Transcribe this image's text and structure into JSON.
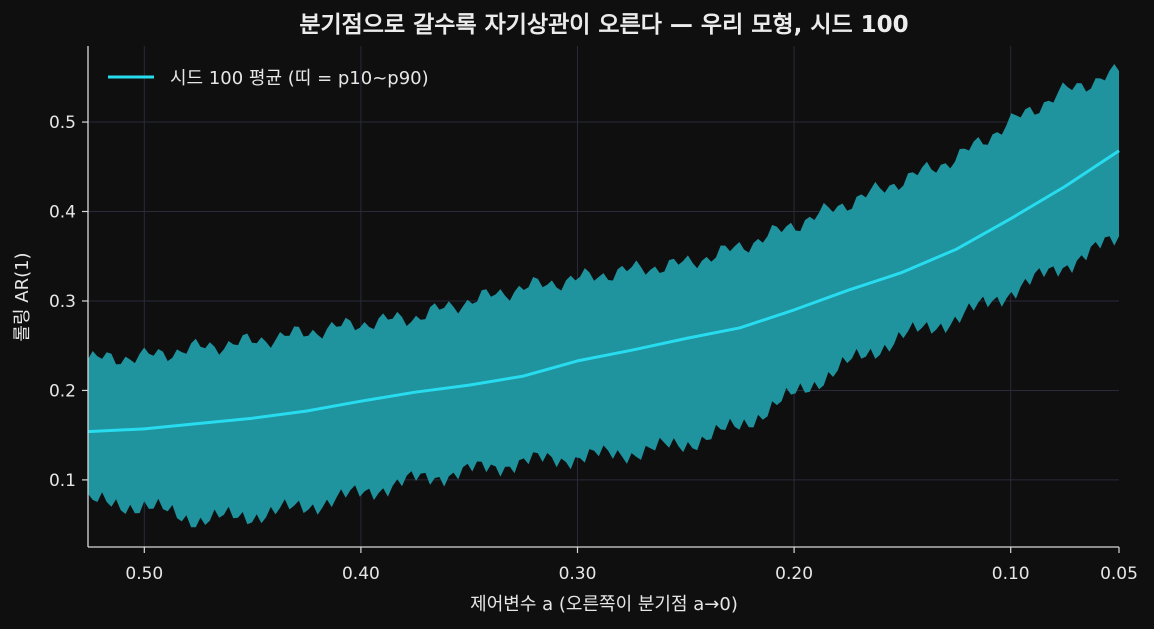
{
  "chart_data": {
    "type": "line",
    "title": "분기점으로 갈수록 자기상관이 오른다 — 우리 모형, 시드 100",
    "xlabel": "제어변수 a (오른쪽이 분기점 a→0)",
    "ylabel": "롤링 AR(1)",
    "x_axis_reversed": true,
    "xlim": [
      0.526,
      0.05
    ],
    "ylim": [
      0.025,
      0.585
    ],
    "xticks": [
      0.5,
      0.4,
      0.3,
      0.2,
      0.1,
      0.05
    ],
    "xtick_labels": [
      "0.50",
      "0.40",
      "0.30",
      "0.20",
      "0.10",
      "0.05"
    ],
    "yticks": [
      0.1,
      0.2,
      0.3,
      0.4,
      0.5
    ],
    "ytick_labels": [
      "0.1",
      "0.2",
      "0.3",
      "0.4",
      "0.5"
    ],
    "grid": true,
    "legend_position": "top-left",
    "legend": [
      "시드 100 평균 (띠 = p10~p90)"
    ],
    "colors": {
      "mean_line": "#27dcef",
      "band": "#1f939e",
      "grid": "#2a2a3a",
      "axis": "#d8d8d8",
      "background": "#0f0f0f"
    },
    "x": [
      0.526,
      0.5,
      0.475,
      0.45,
      0.425,
      0.4,
      0.375,
      0.35,
      0.325,
      0.3,
      0.275,
      0.25,
      0.225,
      0.2,
      0.175,
      0.15,
      0.125,
      0.1,
      0.075,
      0.05
    ],
    "series": [
      {
        "name": "시드 100 평균 (띠 = p10~p90)",
        "role": "mean",
        "values": [
          0.154,
          0.157,
          0.163,
          0.169,
          0.177,
          0.188,
          0.198,
          0.206,
          0.216,
          0.233,
          0.245,
          0.258,
          0.27,
          0.29,
          0.312,
          0.332,
          0.358,
          0.392,
          0.428,
          0.468
        ]
      },
      {
        "role": "p90",
        "values": [
          0.235,
          0.238,
          0.248,
          0.255,
          0.265,
          0.275,
          0.282,
          0.3,
          0.315,
          0.325,
          0.335,
          0.342,
          0.36,
          0.385,
          0.41,
          0.435,
          0.46,
          0.5,
          0.535,
          0.556
        ]
      },
      {
        "role": "p10",
        "values": [
          0.075,
          0.07,
          0.055,
          0.06,
          0.07,
          0.085,
          0.1,
          0.11,
          0.12,
          0.125,
          0.13,
          0.14,
          0.16,
          0.195,
          0.23,
          0.26,
          0.28,
          0.31,
          0.34,
          0.37
        ]
      }
    ]
  }
}
